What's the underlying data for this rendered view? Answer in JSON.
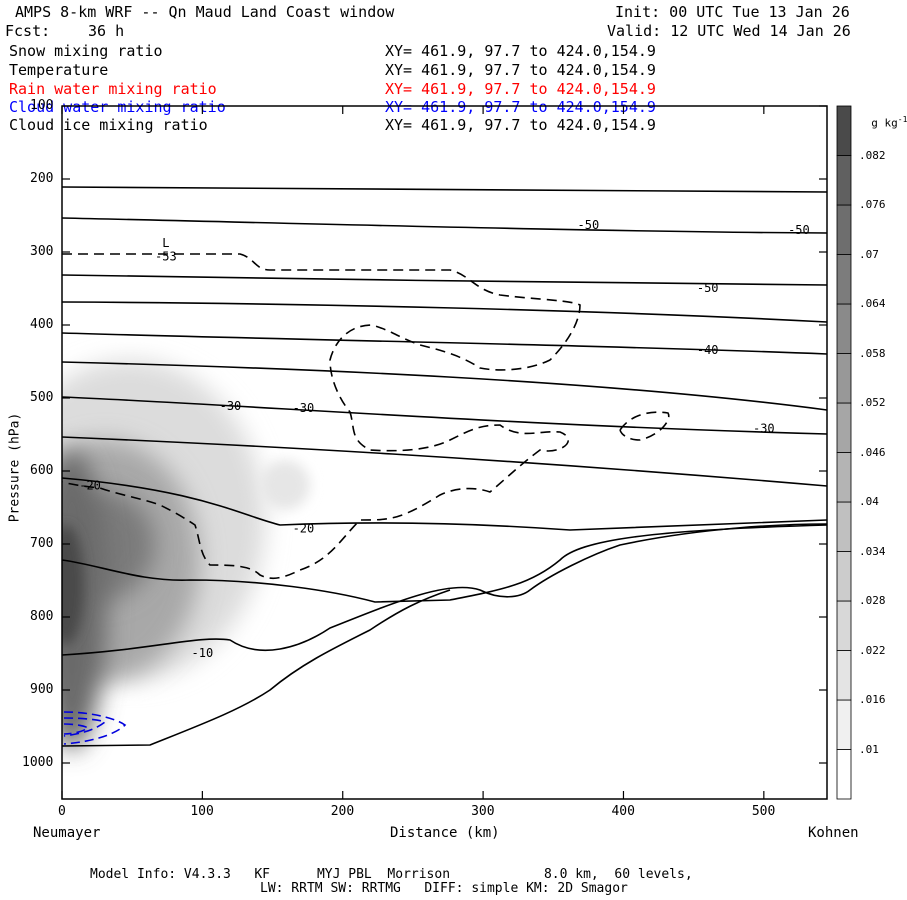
{
  "header": {
    "title": "AMPS 8-km WRF -- Qn Maud Land Coast window",
    "forecast_label": "Fcst:",
    "forecast_value": "36 h",
    "init": "Init: 00 UTC Tue 13 Jan 26",
    "valid": "Valid: 12 UTC Wed 14 Jan 26"
  },
  "fields": [
    {
      "name": "Snow mixing ratio",
      "range": "XY= 461.9, 97.7 to 424.0,154.9",
      "color": "#000000"
    },
    {
      "name": "Temperature",
      "range": "XY= 461.9, 97.7 to 424.0,154.9",
      "color": "#000000"
    },
    {
      "name": "Rain water mixing ratio",
      "range": "XY= 461.9, 97.7 to 424.0,154.9",
      "color": "#ff0000"
    },
    {
      "name": "Cloud water mixing ratio",
      "range": "XY= 461.9, 97.7 to 424.0,154.9",
      "color": "#0000ff"
    },
    {
      "name": "Cloud ice mixing ratio",
      "range": "XY= 461.9, 97.7 to 424.0,154.9",
      "color": "#000000"
    }
  ],
  "footer": {
    "line1": "Model Info: V4.3.3   KF      MYJ PBL  Morrison            8.0 km,  60 levels,",
    "line2": "LW: RRTM SW: RRTMG   DIFF: simple KM: 2D Smagor"
  },
  "colorbar": {
    "unit": "g kg",
    "unit_exp": "-1",
    "ticks": [
      ".01",
      ".016",
      ".022",
      ".028",
      ".034",
      ".04",
      ".046",
      ".052",
      ".058",
      ".064",
      ".07",
      ".076",
      ".082"
    ],
    "colors": [
      "#ffffff",
      "#f0f0f0",
      "#e4e4e4",
      "#d8d8d8",
      "#cccccc",
      "#c0c0c0",
      "#b4b4b4",
      "#a6a6a6",
      "#989898",
      "#8a8a8a",
      "#7c7c7c",
      "#6e6e6e",
      "#606060",
      "#4a4a4a"
    ]
  },
  "chart_data": {
    "type": "heatmap",
    "title": "AMPS 8-km WRF -- Qn Maud Land Coast window",
    "xlabel": "Distance (km)",
    "ylabel": "Pressure (hPa)",
    "x_left_label": "Neumayer",
    "x_right_label": "Kohnen",
    "xlim": [
      0,
      545
    ],
    "ylim": [
      1050,
      100
    ],
    "x_ticks": [
      0,
      100,
      200,
      300,
      400,
      500
    ],
    "y_ticks": [
      100,
      200,
      300,
      400,
      500,
      600,
      700,
      800,
      900,
      1000
    ],
    "temperature_contour_labels": [
      {
        "text": "-50",
        "x": 375,
        "y": 263
      },
      {
        "text": "-50",
        "x": 525,
        "y": 270
      },
      {
        "text": "-50",
        "x": 460,
        "y": 349
      },
      {
        "text": "-40",
        "x": 460,
        "y": 434
      },
      {
        "text": "-30",
        "x": 120,
        "y": 511
      },
      {
        "text": "-30",
        "x": 172,
        "y": 514
      },
      {
        "text": "-30",
        "x": 500,
        "y": 542
      },
      {
        "text": "-20",
        "x": 20,
        "y": 620
      },
      {
        "text": "-20",
        "x": 172,
        "y": 679
      },
      {
        "text": "-10",
        "x": 100,
        "y": 849
      }
    ],
    "extremum_labels": [
      {
        "text": "L",
        "x": 74,
        "y": 288
      },
      {
        "text": "-53",
        "x": 74,
        "y": 306
      }
    ],
    "snow_mixing_ratio_max": 0.082,
    "series": [
      {
        "name": "Temperature",
        "style": "solid",
        "color": "#000000"
      },
      {
        "name": "Cloud ice mixing ratio",
        "style": "dashed",
        "color": "#000000"
      },
      {
        "name": "Cloud water mixing ratio",
        "style": "dashed",
        "color": "#0000ff"
      },
      {
        "name": "Snow mixing ratio",
        "style": "shaded",
        "color": "#4a4a4a"
      }
    ]
  }
}
